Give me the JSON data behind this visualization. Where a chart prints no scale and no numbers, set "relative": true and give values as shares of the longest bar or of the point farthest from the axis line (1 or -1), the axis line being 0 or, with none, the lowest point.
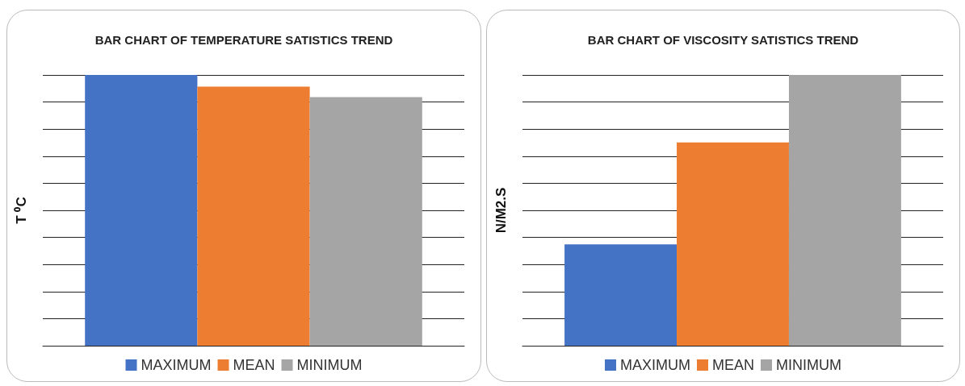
{
  "chart_data": [
    {
      "type": "bar",
      "title": "BAR CHART OF TEMPERATURE SATISTICS TREND",
      "ylabel": "T ⁰C",
      "categories": [
        null
      ],
      "relative": true,
      "grid": "y",
      "legend": "bottom",
      "series": [
        {
          "name": "MAXIMUM",
          "color": "#4472c4",
          "values": [
            1
          ]
        },
        {
          "name": "MEAN",
          "color": "#ed7d31",
          "values": [
            0.957
          ]
        },
        {
          "name": "MINIMUM",
          "color": "#a5a5a5",
          "values": [
            0.918
          ]
        }
      ]
    },
    {
      "type": "bar",
      "title": "BAR CHART OF VISCOSITY SATISTICS TREND",
      "ylabel": "N/M2.S",
      "categories": [
        null
      ],
      "relative": true,
      "grid": "y",
      "legend": "bottom",
      "series": [
        {
          "name": "MAXIMUM",
          "color": "#4472c4",
          "values": [
            0.374
          ]
        },
        {
          "name": "MEAN",
          "color": "#ed7d31",
          "values": [
            0.751
          ]
        },
        {
          "name": "MINIMUM",
          "color": "#a5a5a5",
          "values": [
            1
          ]
        }
      ]
    }
  ]
}
